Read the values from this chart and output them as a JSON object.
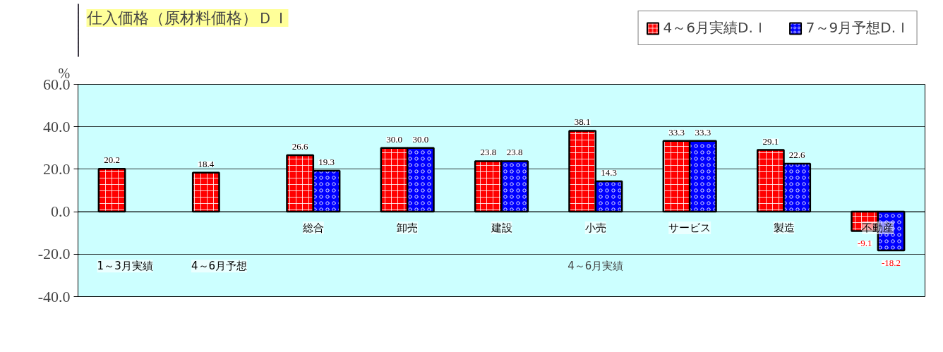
{
  "chart_data": {
    "type": "bar",
    "title": "仕入価格（原材料価格）ＤＩ",
    "ylabel": "%",
    "categories": [
      "1～3月実績",
      "4～6月予想",
      "総合",
      "卸売",
      "建設",
      "小売",
      "サービス",
      "製造",
      "不動産"
    ],
    "series": [
      {
        "name": "4～6月実績D.Ｉ",
        "color": "#ff0000",
        "values": [
          20.2,
          18.4,
          26.6,
          30.0,
          23.8,
          38.1,
          33.3,
          29.1,
          -9.1
        ],
        "value_labels": [
          "20.2",
          "18.4",
          "26.6",
          "30.0",
          "23.8",
          "38.1",
          "33.3",
          "29.1",
          "-9.1"
        ]
      },
      {
        "name": "7～9月予想D.Ｉ",
        "color": "#0000ff",
        "values": [
          null,
          null,
          19.3,
          30.0,
          23.8,
          14.3,
          33.3,
          22.6,
          -18.2
        ],
        "value_labels": [
          null,
          null,
          "19.3",
          "30.0",
          "23.8",
          "14.3",
          "33.3",
          "22.6",
          "-18.2"
        ]
      }
    ],
    "annotations": [
      "4～6月実績"
    ],
    "ylim": [
      -40,
      60
    ],
    "yticks": [
      {
        "value": -40,
        "label": "-40.0"
      },
      {
        "value": -20,
        "label": "-20.0"
      },
      {
        "value": 0,
        "label": "0.0"
      },
      {
        "value": 20,
        "label": "20.0"
      },
      {
        "value": 40,
        "label": "40.0"
      },
      {
        "value": 60,
        "label": "60.0"
      }
    ],
    "grid": "y",
    "legend": "top right"
  }
}
